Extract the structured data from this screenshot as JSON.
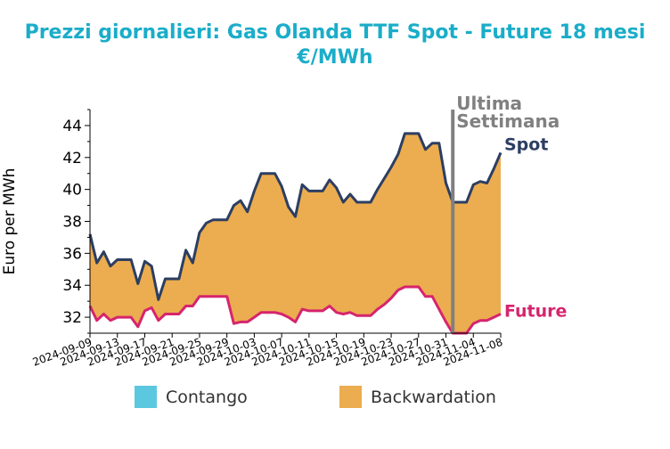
{
  "chart_data": {
    "type": "area",
    "title_line1": "Prezzi giornalieri: Gas Olanda TTF Spot - Future 18 mesi",
    "title_line2": "€/MWh",
    "xlabel": "",
    "ylabel": "Euro per MWh",
    "ylim": [
      31.0,
      45.0
    ],
    "yticks": [
      "32",
      "34",
      "36",
      "38",
      "40",
      "42",
      "44"
    ],
    "xlim": [
      "2024-09-09",
      "2024-11-08"
    ],
    "xticks": [
      "2024-09-09",
      "2024-09-13",
      "2024-09-17",
      "2024-09-21",
      "2024-09-25",
      "2024-09-29",
      "2024-10-03",
      "2024-10-07",
      "2024-10-11",
      "2024-10-15",
      "2024-10-19",
      "2024-10-23",
      "2024-10-27",
      "2024-10-31",
      "2024-11-04",
      "2024-11-08"
    ],
    "series": [
      {
        "name": "Spot",
        "color": "#2c3e62",
        "x": [
          "2024-09-09",
          "2024-09-10",
          "2024-09-11",
          "2024-09-12",
          "2024-09-13",
          "2024-09-14",
          "2024-09-15",
          "2024-09-16",
          "2024-09-17",
          "2024-09-18",
          "2024-09-19",
          "2024-09-20",
          "2024-09-21",
          "2024-09-22",
          "2024-09-23",
          "2024-09-24",
          "2024-09-25",
          "2024-09-26",
          "2024-09-27",
          "2024-09-28",
          "2024-09-29",
          "2024-09-30",
          "2024-10-01",
          "2024-10-02",
          "2024-10-03",
          "2024-10-04",
          "2024-10-05",
          "2024-10-06",
          "2024-10-07",
          "2024-10-08",
          "2024-10-09",
          "2024-10-10",
          "2024-10-11",
          "2024-10-12",
          "2024-10-13",
          "2024-10-14",
          "2024-10-15",
          "2024-10-16",
          "2024-10-17",
          "2024-10-18",
          "2024-10-19",
          "2024-10-20",
          "2024-10-21",
          "2024-10-22",
          "2024-10-23",
          "2024-10-24",
          "2024-10-25",
          "2024-10-26",
          "2024-10-27",
          "2024-10-28",
          "2024-10-29",
          "2024-10-30",
          "2024-10-31",
          "2024-11-01",
          "2024-11-02",
          "2024-11-03",
          "2024-11-04",
          "2024-11-05",
          "2024-11-06",
          "2024-11-07",
          "2024-11-08"
        ],
        "values": [
          37.2,
          35.4,
          36.1,
          35.2,
          35.6,
          35.6,
          35.6,
          34.1,
          35.5,
          35.2,
          33.1,
          34.4,
          34.4,
          34.4,
          36.2,
          35.4,
          37.3,
          37.9,
          38.1,
          38.1,
          38.1,
          39.0,
          39.3,
          38.6,
          39.9,
          41.0,
          41.0,
          41.0,
          40.2,
          38.9,
          38.3,
          40.3,
          39.9,
          39.9,
          39.9,
          40.6,
          40.1,
          39.2,
          39.7,
          39.2,
          39.2,
          39.2,
          40.0,
          40.7,
          41.4,
          42.2,
          43.5,
          43.5,
          43.5,
          42.5,
          42.9,
          42.9,
          40.4,
          39.2,
          39.2,
          39.2,
          40.3,
          40.5,
          40.4,
          41.3,
          42.3
        ]
      },
      {
        "name": "Future",
        "color": "#d6246e",
        "x": [
          "2024-09-09",
          "2024-09-10",
          "2024-09-11",
          "2024-09-12",
          "2024-09-13",
          "2024-09-14",
          "2024-09-15",
          "2024-09-16",
          "2024-09-17",
          "2024-09-18",
          "2024-09-19",
          "2024-09-20",
          "2024-09-21",
          "2024-09-22",
          "2024-09-23",
          "2024-09-24",
          "2024-09-25",
          "2024-09-26",
          "2024-09-27",
          "2024-09-28",
          "2024-09-29",
          "2024-09-30",
          "2024-10-01",
          "2024-10-02",
          "2024-10-03",
          "2024-10-04",
          "2024-10-05",
          "2024-10-06",
          "2024-10-07",
          "2024-10-08",
          "2024-10-09",
          "2024-10-10",
          "2024-10-11",
          "2024-10-12",
          "2024-10-13",
          "2024-10-14",
          "2024-10-15",
          "2024-10-16",
          "2024-10-17",
          "2024-10-18",
          "2024-10-19",
          "2024-10-20",
          "2024-10-21",
          "2024-10-22",
          "2024-10-23",
          "2024-10-24",
          "2024-10-25",
          "2024-10-26",
          "2024-10-27",
          "2024-10-28",
          "2024-10-29",
          "2024-10-30",
          "2024-10-31",
          "2024-11-01",
          "2024-11-02",
          "2024-11-03",
          "2024-11-04",
          "2024-11-05",
          "2024-11-06",
          "2024-11-07",
          "2024-11-08"
        ],
        "values": [
          32.7,
          31.8,
          32.2,
          31.8,
          32.0,
          32.0,
          32.0,
          31.4,
          32.4,
          32.6,
          31.8,
          32.2,
          32.2,
          32.2,
          32.7,
          32.7,
          33.3,
          33.3,
          33.3,
          33.3,
          33.3,
          31.6,
          31.7,
          31.7,
          32.0,
          32.3,
          32.3,
          32.3,
          32.2,
          32.0,
          31.7,
          32.5,
          32.4,
          32.4,
          32.4,
          32.7,
          32.3,
          32.2,
          32.3,
          32.1,
          32.1,
          32.1,
          32.5,
          32.8,
          33.2,
          33.7,
          33.9,
          33.9,
          33.9,
          33.3,
          33.3,
          32.5,
          31.7,
          31.0,
          31.0,
          31.0,
          31.6,
          31.8,
          31.8,
          32.0,
          32.2
        ]
      }
    ],
    "annotations": [
      {
        "text_line1": "Ultima",
        "text_line2": "Settimana",
        "x": "2024-11-01",
        "color": "#808080"
      }
    ],
    "legend": {
      "placement": "bottom-center",
      "items": [
        {
          "label": "Contango",
          "color": "#5bc8e0"
        },
        {
          "label": "Backwardation",
          "color": "#ebad4f"
        }
      ]
    },
    "grid": false
  }
}
